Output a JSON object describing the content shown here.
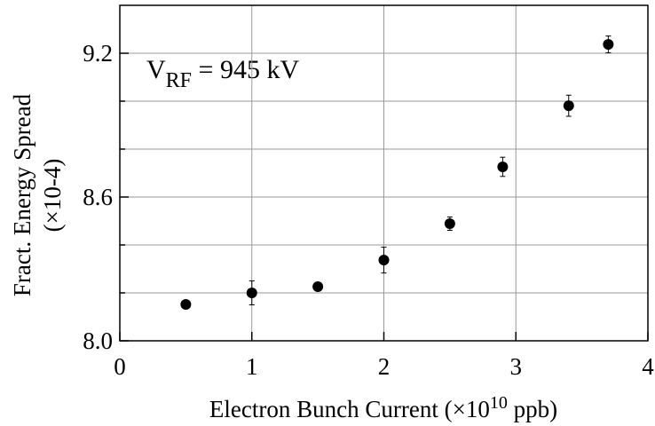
{
  "chart_data": {
    "type": "scatter",
    "annotation": {
      "main": "V",
      "subscript": "RF",
      "rest": " = 945 kV"
    },
    "xlabel": {
      "main": "Electron Bunch Current (×10",
      "superscript": "10",
      "rest": " ppb)"
    },
    "ylabel": [
      "Fract. Energy Spread",
      "(×10-4)"
    ],
    "x": [
      0.5,
      1.0,
      1.5,
      2.0,
      2.5,
      2.9,
      3.4,
      3.7
    ],
    "values": [
      8.152,
      8.2,
      8.226,
      8.337,
      8.489,
      8.726,
      8.981,
      9.237
    ],
    "errors": [
      0.01,
      0.05,
      0.01,
      0.054,
      0.028,
      0.04,
      0.044,
      0.035
    ],
    "color": "#000000",
    "xlim": [
      0,
      4
    ],
    "xticks": [
      0,
      1,
      2,
      3,
      4
    ],
    "ylim": [
      8.0,
      9.4
    ],
    "yticks": [
      {
        "value": 8.0,
        "label": "8.0"
      },
      8.6,
      9.2
    ],
    "ygrid": [
      8.2,
      8.4,
      8.8,
      9.0
    ],
    "grid": true
  }
}
